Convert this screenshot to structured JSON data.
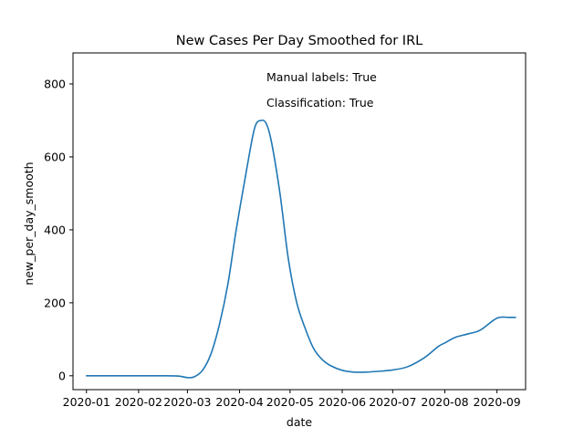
{
  "chart_data": {
    "type": "line",
    "title": "New Cases Per Day Smoothed for IRL",
    "xlabel": "date",
    "ylabel": "new_per_day_smooth",
    "annotations": [
      "Manual labels: True",
      "Classification: True"
    ],
    "x_ticks": [
      "2020-01",
      "2020-02",
      "2020-03",
      "2020-04",
      "2020-05",
      "2020-06",
      "2020-07",
      "2020-08",
      "2020-09"
    ],
    "y_ticks": [
      0,
      200,
      400,
      600,
      800
    ],
    "xlim": [
      "2019-12-24",
      "2020-09-18"
    ],
    "ylim": [
      -38,
      885
    ],
    "grid": false,
    "legend": "none",
    "series": [
      {
        "color": "#1f77b4",
        "x": [
          "2020-01-01",
          "2020-01-15",
          "2020-02-01",
          "2020-02-15",
          "2020-02-25",
          "2020-03-01",
          "2020-03-05",
          "2020-03-10",
          "2020-03-15",
          "2020-03-20",
          "2020-03-25",
          "2020-03-30",
          "2020-04-05",
          "2020-04-10",
          "2020-04-14",
          "2020-04-17",
          "2020-04-20",
          "2020-04-25",
          "2020-04-30",
          "2020-05-05",
          "2020-05-10",
          "2020-05-15",
          "2020-05-20",
          "2020-05-25",
          "2020-06-01",
          "2020-06-08",
          "2020-06-15",
          "2020-06-22",
          "2020-07-01",
          "2020-07-10",
          "2020-07-20",
          "2020-07-28",
          "2020-08-01",
          "2020-08-07",
          "2020-08-15",
          "2020-08-22",
          "2020-09-01",
          "2020-09-08",
          "2020-09-12"
        ],
        "y": [
          0,
          0,
          0,
          0,
          -1,
          -5,
          -3,
          15,
          60,
          140,
          250,
          400,
          560,
          680,
          700,
          690,
          640,
          500,
          320,
          200,
          130,
          75,
          45,
          28,
          15,
          10,
          10,
          12,
          16,
          25,
          50,
          80,
          90,
          105,
          115,
          125,
          158,
          160,
          160
        ]
      }
    ]
  }
}
